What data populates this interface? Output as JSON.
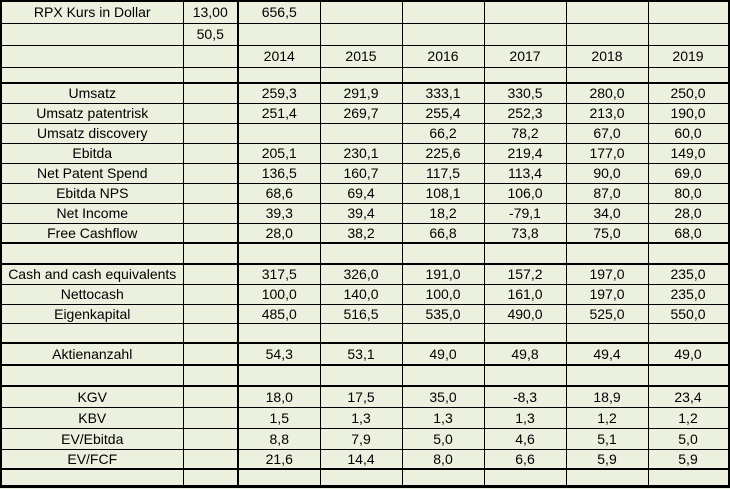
{
  "colors": {
    "cell_bg": "#ebf1de",
    "grid": "#000000",
    "text": "#000000"
  },
  "spreadsheet": {
    "title_cell": "RPX Kurs in Dollar",
    "price_value": "13,00",
    "market_cap_value": "656,5",
    "secondary_value": "50,5",
    "years": [
      "2014",
      "2015",
      "2016",
      "2017",
      "2018",
      "2019"
    ],
    "rows": [
      {
        "label": "RPX Kurs in Dollar",
        "col_b": "13,00",
        "values": [
          "656,5",
          "",
          "",
          "",
          "",
          ""
        ]
      },
      {
        "label": "",
        "col_b": "50,5",
        "values": [
          "",
          "",
          "",
          "",
          "",
          ""
        ]
      },
      {
        "label": "",
        "col_b": "",
        "values": [
          "2014",
          "2015",
          "2016",
          "2017",
          "2018",
          "2019"
        ]
      },
      {
        "label": "",
        "col_b": "",
        "values": [
          "",
          "",
          "",
          "",
          "",
          ""
        ]
      },
      {
        "label": "Umsatz",
        "col_b": "",
        "values": [
          "259,3",
          "291,9",
          "333,1",
          "330,5",
          "280,0",
          "250,0"
        ]
      },
      {
        "label": "Umsatz patentrisk",
        "col_b": "",
        "values": [
          "251,4",
          "269,7",
          "255,4",
          "252,3",
          "213,0",
          "190,0"
        ]
      },
      {
        "label": "Umsatz discovery",
        "col_b": "",
        "values": [
          "",
          "",
          "66,2",
          "78,2",
          "67,0",
          "60,0"
        ]
      },
      {
        "label": "Ebitda",
        "col_b": "",
        "values": [
          "205,1",
          "230,1",
          "225,6",
          "219,4",
          "177,0",
          "149,0"
        ]
      },
      {
        "label": "Net Patent Spend",
        "col_b": "",
        "values": [
          "136,5",
          "160,7",
          "117,5",
          "113,4",
          "90,0",
          "69,0"
        ]
      },
      {
        "label": "Ebitda NPS",
        "col_b": "",
        "values": [
          "68,6",
          "69,4",
          "108,1",
          "106,0",
          "87,0",
          "80,0"
        ]
      },
      {
        "label": "Net Income",
        "col_b": "",
        "values": [
          "39,3",
          "39,4",
          "18,2",
          "-79,1",
          "34,0",
          "28,0"
        ]
      },
      {
        "label": "Free Cashflow",
        "col_b": "",
        "values": [
          "28,0",
          "38,2",
          "66,8",
          "73,8",
          "75,0",
          "68,0"
        ]
      },
      {
        "label": "",
        "col_b": "",
        "values": [
          "",
          "",
          "",
          "",
          "",
          ""
        ]
      },
      {
        "label": "Cash and cash equivalents",
        "col_b": "",
        "values": [
          "317,5",
          "326,0",
          "191,0",
          "157,2",
          "197,0",
          "235,0"
        ]
      },
      {
        "label": "Nettocash",
        "col_b": "",
        "values": [
          "100,0",
          "140,0",
          "100,0",
          "161,0",
          "197,0",
          "235,0"
        ]
      },
      {
        "label": "Eigenkapital",
        "col_b": "",
        "values": [
          "485,0",
          "516,5",
          "535,0",
          "490,0",
          "525,0",
          "550,0"
        ]
      },
      {
        "label": "",
        "col_b": "",
        "values": [
          "",
          "",
          "",
          "",
          "",
          ""
        ]
      },
      {
        "label": "Aktienanzahl",
        "col_b": "",
        "values": [
          "54,3",
          "53,1",
          "49,0",
          "49,8",
          "49,4",
          "49,0"
        ]
      },
      {
        "label": "",
        "col_b": "",
        "values": [
          "",
          "",
          "",
          "",
          "",
          ""
        ]
      },
      {
        "label": "KGV",
        "col_b": "",
        "values": [
          "18,0",
          "17,5",
          "35,0",
          "-8,3",
          "18,9",
          "23,4"
        ]
      },
      {
        "label": "KBV",
        "col_b": "",
        "values": [
          "1,5",
          "1,3",
          "1,3",
          "1,3",
          "1,2",
          "1,2"
        ]
      },
      {
        "label": "EV/Ebitda",
        "col_b": "",
        "values": [
          "8,8",
          "7,9",
          "5,0",
          "4,6",
          "5,1",
          "5,0"
        ]
      },
      {
        "label": "EV/FCF",
        "col_b": "",
        "values": [
          "21,6",
          "14,4",
          "8,0",
          "6,6",
          "5,9",
          "5,9"
        ]
      },
      {
        "label": "",
        "col_b": "",
        "values": [
          "",
          "",
          "",
          "",
          "",
          ""
        ]
      }
    ]
  }
}
